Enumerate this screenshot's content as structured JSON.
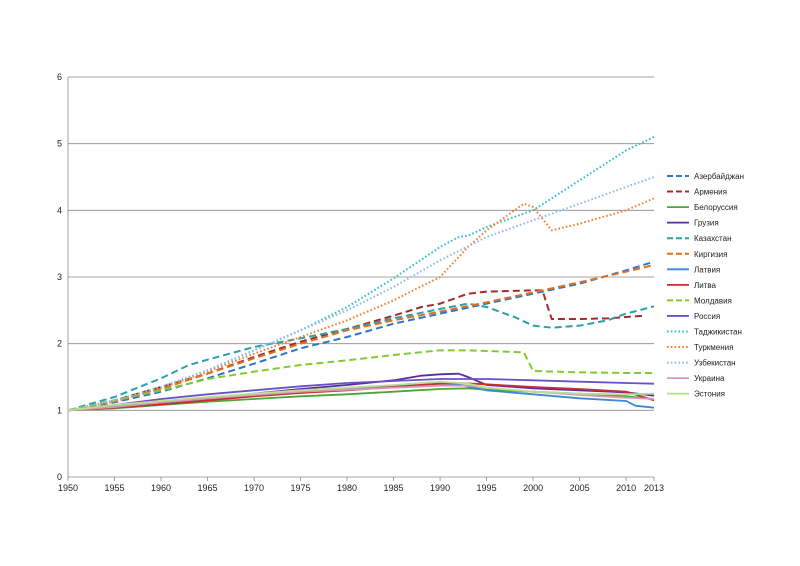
{
  "chart_data": {
    "type": "line",
    "title": "",
    "xlabel": "",
    "ylabel": "",
    "xlim": [
      1950,
      2013
    ],
    "ylim": [
      0,
      6
    ],
    "grid": "horizontal",
    "legend_position": "right",
    "x_tick_labels": [
      "1950",
      "1955",
      "1960",
      "1965",
      "1970",
      "1975",
      "1980",
      "1985",
      "1990",
      "1995",
      "2000",
      "2005",
      "2010",
      "2013"
    ],
    "y_tick_labels": [
      "0",
      "1",
      "2",
      "3",
      "4",
      "5",
      "6"
    ],
    "series": [
      {
        "name": "Азербайджан",
        "color": "#2e75c8",
        "dash": "dashed",
        "x": [
          1950,
          1955,
          1960,
          1965,
          1970,
          1975,
          1980,
          1985,
          1990,
          1995,
          2000,
          2005,
          2010,
          2013
        ],
        "y": [
          1.0,
          1.12,
          1.28,
          1.48,
          1.7,
          1.93,
          2.1,
          2.3,
          2.45,
          2.6,
          2.75,
          2.9,
          3.1,
          3.23
        ]
      },
      {
        "name": "Армения",
        "color": "#a52a2a",
        "dash": "dashed",
        "x": [
          1950,
          1955,
          1960,
          1965,
          1970,
          1975,
          1980,
          1985,
          1988,
          1990,
          1993,
          1995,
          2000,
          2001,
          2002,
          2005,
          2008,
          2012
        ],
        "y": [
          1.0,
          1.15,
          1.35,
          1.55,
          1.8,
          2.03,
          2.22,
          2.42,
          2.55,
          2.6,
          2.75,
          2.78,
          2.8,
          2.8,
          2.37,
          2.37,
          2.38,
          2.42
        ]
      },
      {
        "name": "Белоруссия",
        "color": "#4aa832",
        "dash": "solid",
        "x": [
          1950,
          1955,
          1960,
          1965,
          1970,
          1975,
          1980,
          1985,
          1990,
          1993,
          1995,
          2000,
          2005,
          2010,
          2013
        ],
        "y": [
          1.0,
          1.03,
          1.08,
          1.13,
          1.17,
          1.21,
          1.24,
          1.28,
          1.32,
          1.33,
          1.31,
          1.28,
          1.25,
          1.21,
          1.17
        ]
      },
      {
        "name": "Грузия",
        "color": "#5b2d9a",
        "dash": "solid",
        "x": [
          1950,
          1955,
          1960,
          1965,
          1970,
          1975,
          1980,
          1985,
          1988,
          1990,
          1992,
          1993,
          1995,
          2000,
          2005,
          2010,
          2013
        ],
        "y": [
          1.0,
          1.06,
          1.12,
          1.18,
          1.25,
          1.32,
          1.38,
          1.45,
          1.52,
          1.54,
          1.55,
          1.5,
          1.38,
          1.33,
          1.3,
          1.27,
          1.22
        ]
      },
      {
        "name": "Казахстан",
        "color": "#2aa0a8",
        "dash": "dashed",
        "x": [
          1950,
          1955,
          1960,
          1963,
          1965,
          1970,
          1975,
          1980,
          1985,
          1990,
          1993,
          1995,
          1998,
          2000,
          2002,
          2005,
          2008,
          2010,
          2013
        ],
        "y": [
          1.0,
          1.2,
          1.48,
          1.68,
          1.76,
          1.95,
          2.08,
          2.22,
          2.38,
          2.52,
          2.6,
          2.55,
          2.4,
          2.27,
          2.24,
          2.27,
          2.35,
          2.45,
          2.56
        ]
      },
      {
        "name": "Киргизия",
        "color": "#e07020",
        "dash": "dashed",
        "x": [
          1950,
          1955,
          1960,
          1965,
          1970,
          1975,
          1980,
          1985,
          1990,
          1995,
          2000,
          2005,
          2010,
          2013
        ],
        "y": [
          1.0,
          1.14,
          1.32,
          1.55,
          1.78,
          2.0,
          2.2,
          2.35,
          2.48,
          2.62,
          2.77,
          2.92,
          3.08,
          3.18
        ]
      },
      {
        "name": "Латвия",
        "color": "#3a88d8",
        "dash": "solid",
        "x": [
          1950,
          1955,
          1960,
          1965,
          1970,
          1975,
          1980,
          1985,
          1990,
          1992,
          1995,
          2000,
          2005,
          2010,
          2011,
          2013
        ],
        "y": [
          1.0,
          1.06,
          1.12,
          1.18,
          1.24,
          1.28,
          1.32,
          1.36,
          1.4,
          1.39,
          1.3,
          1.24,
          1.18,
          1.14,
          1.07,
          1.04
        ]
      },
      {
        "name": "Литва",
        "color": "#c83030",
        "dash": "solid",
        "x": [
          1950,
          1955,
          1960,
          1965,
          1970,
          1975,
          1980,
          1985,
          1990,
          1992,
          1995,
          2000,
          2005,
          2010,
          2013
        ],
        "y": [
          1.0,
          1.04,
          1.09,
          1.15,
          1.21,
          1.26,
          1.3,
          1.35,
          1.4,
          1.41,
          1.39,
          1.35,
          1.32,
          1.28,
          1.15
        ]
      },
      {
        "name": "Молдавия",
        "color": "#80cc30",
        "dash": "dashed",
        "x": [
          1950,
          1955,
          1960,
          1965,
          1970,
          1975,
          1980,
          1985,
          1990,
          1993,
          1995,
          1999,
          2000,
          2005,
          2010,
          2013
        ],
        "y": [
          1.0,
          1.15,
          1.3,
          1.47,
          1.58,
          1.68,
          1.75,
          1.83,
          1.9,
          1.9,
          1.89,
          1.87,
          1.59,
          1.57,
          1.56,
          1.56
        ]
      },
      {
        "name": "Россия",
        "color": "#6a50c8",
        "dash": "solid",
        "x": [
          1950,
          1955,
          1960,
          1965,
          1970,
          1975,
          1980,
          1985,
          1990,
          1995,
          2000,
          2005,
          2010,
          2013
        ],
        "y": [
          1.0,
          1.08,
          1.17,
          1.24,
          1.3,
          1.36,
          1.41,
          1.44,
          1.47,
          1.47,
          1.45,
          1.43,
          1.41,
          1.4
        ]
      },
      {
        "name": "Таджикистан",
        "color": "#30c0c8",
        "dash": "dotted",
        "x": [
          1950,
          1955,
          1960,
          1965,
          1970,
          1975,
          1980,
          1985,
          1990,
          1992,
          1993,
          1995,
          2000,
          2005,
          2010,
          2013
        ],
        "y": [
          1.0,
          1.15,
          1.35,
          1.6,
          1.9,
          2.2,
          2.55,
          2.98,
          3.45,
          3.6,
          3.62,
          3.75,
          4.0,
          4.45,
          4.9,
          5.1
        ]
      },
      {
        "name": "Туркмения",
        "color": "#f08030",
        "dash": "dotted",
        "x": [
          1950,
          1955,
          1960,
          1965,
          1970,
          1975,
          1980,
          1985,
          1990,
          1993,
          1995,
          1999,
          2000,
          2002,
          2005,
          2010,
          2013
        ],
        "y": [
          1.0,
          1.13,
          1.33,
          1.58,
          1.85,
          2.1,
          2.35,
          2.65,
          3.0,
          3.45,
          3.7,
          4.1,
          4.05,
          3.7,
          3.8,
          4.0,
          4.18
        ]
      },
      {
        "name": "Узбекистан",
        "color": "#90b8e8",
        "dash": "dotted",
        "x": [
          1950,
          1955,
          1960,
          1965,
          1970,
          1975,
          1980,
          1985,
          1990,
          1995,
          2000,
          2005,
          2010,
          2013
        ],
        "y": [
          1.0,
          1.15,
          1.35,
          1.6,
          1.9,
          2.2,
          2.5,
          2.85,
          3.25,
          3.6,
          3.85,
          4.1,
          4.35,
          4.5
        ]
      },
      {
        "name": "Украина",
        "color": "#d898b8",
        "dash": "solid",
        "x": [
          1950,
          1955,
          1960,
          1965,
          1970,
          1975,
          1980,
          1985,
          1990,
          1993,
          1995,
          2000,
          2005,
          2010,
          2013
        ],
        "y": [
          1.0,
          1.05,
          1.12,
          1.18,
          1.23,
          1.28,
          1.31,
          1.34,
          1.37,
          1.37,
          1.34,
          1.28,
          1.23,
          1.19,
          1.17
        ]
      },
      {
        "name": "Эстония",
        "color": "#b8e090",
        "dash": "solid",
        "x": [
          1950,
          1955,
          1960,
          1965,
          1970,
          1975,
          1980,
          1985,
          1990,
          1993,
          1995,
          2000,
          2005,
          2010,
          2013
        ],
        "y": [
          1.0,
          1.08,
          1.14,
          1.2,
          1.25,
          1.3,
          1.34,
          1.38,
          1.43,
          1.4,
          1.34,
          1.28,
          1.25,
          1.24,
          1.25
        ]
      }
    ]
  }
}
